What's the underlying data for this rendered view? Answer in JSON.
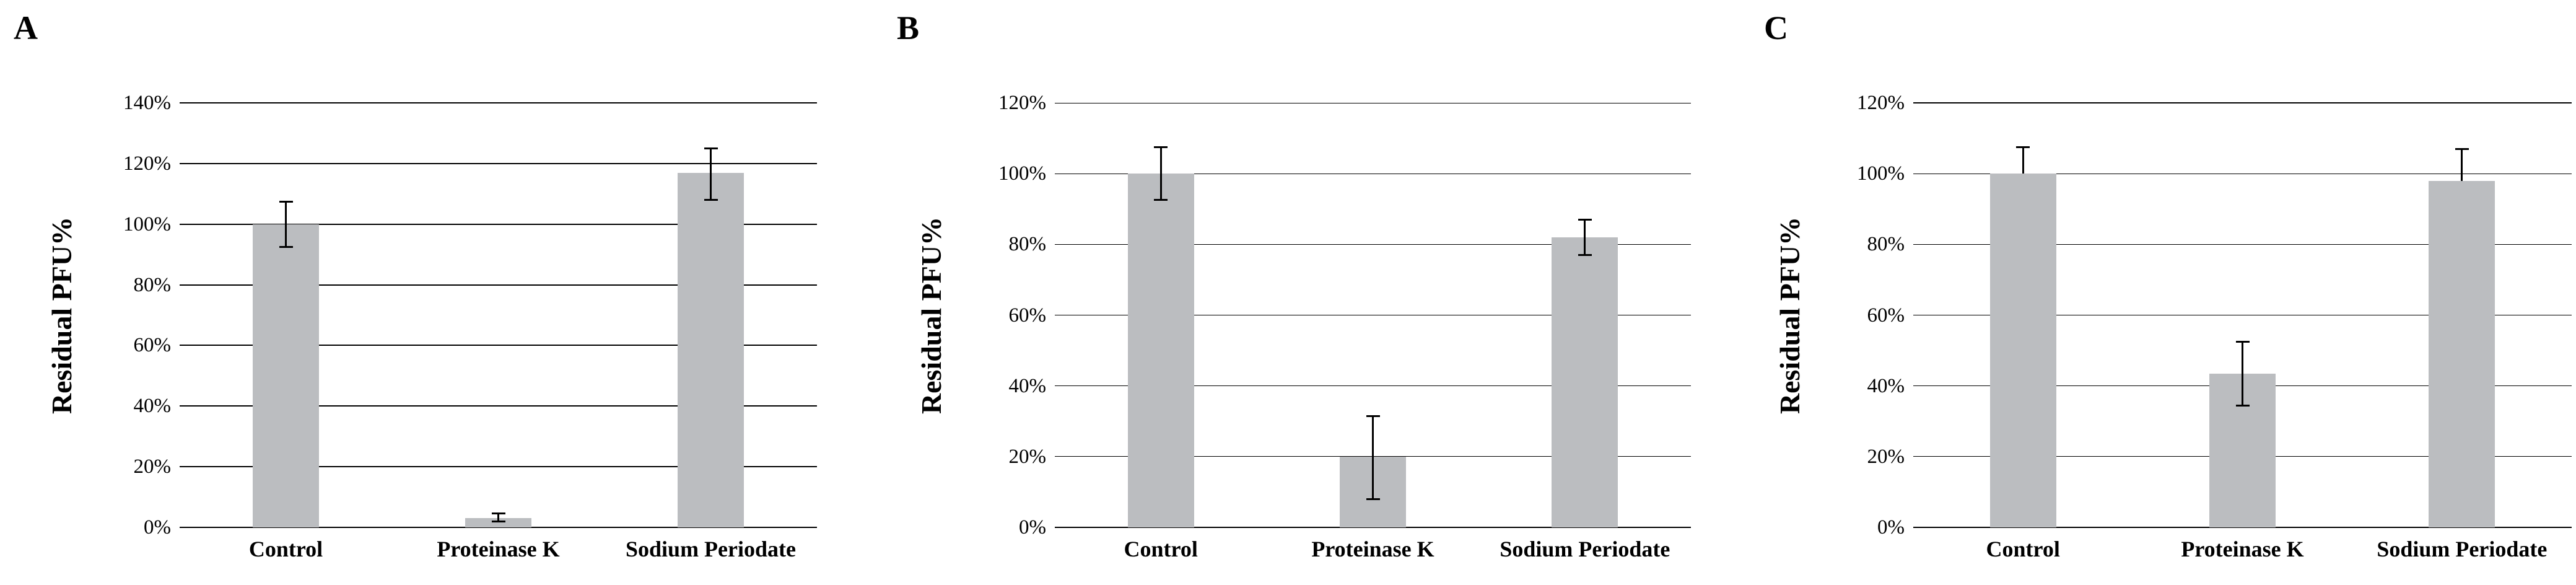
{
  "colors": {
    "bar_fill": "#BBBDC0",
    "axis": "#000000",
    "error_bar": "#000000",
    "background": "#FFFFFF"
  },
  "chart_data": [
    {
      "type": "bar",
      "panel_label": "A",
      "title": "",
      "xlabel": "",
      "ylabel": "Residual PFU%",
      "categories": [
        "Control",
        "Proteinase K",
        "Sodium Periodate"
      ],
      "values": [
        100,
        3,
        117
      ],
      "error_high": [
        107.5,
        4.5,
        125
      ],
      "error_low": [
        92.5,
        2,
        108
      ],
      "ylim": [
        0,
        140
      ],
      "ytick_step": 20,
      "ytick_labels": [
        "0%",
        "20%",
        "40%",
        "60%",
        "80%",
        "100%",
        "120%",
        "140%"
      ],
      "grid": true,
      "legend": null,
      "bar_color": "#BBBDC0"
    },
    {
      "type": "bar",
      "panel_label": "B",
      "title": "",
      "xlabel": "",
      "ylabel": "Residual PFU%",
      "categories": [
        "Control",
        "Proteinase K",
        "Sodium Periodate"
      ],
      "values": [
        100,
        20,
        82
      ],
      "error_high": [
        107.5,
        31.5,
        87
      ],
      "error_low": [
        92.5,
        8,
        77
      ],
      "ylim": [
        0,
        120
      ],
      "ytick_step": 20,
      "ytick_labels": [
        "0%",
        "20%",
        "40%",
        "60%",
        "80%",
        "100%",
        "120%"
      ],
      "grid": true,
      "legend": null,
      "bar_color": "#BBBDC0"
    },
    {
      "type": "bar",
      "panel_label": "C",
      "title": "",
      "xlabel": "",
      "ylabel": "Residual PFU%",
      "categories": [
        "Control",
        "Proteinase K",
        "Sodium Periodate"
      ],
      "values": [
        100,
        43.5,
        98
      ],
      "error_high": [
        107.5,
        52.5,
        107
      ],
      "error_low": [
        null,
        34.5,
        null
      ],
      "ylim": [
        0,
        120
      ],
      "ytick_step": 20,
      "ytick_labels": [
        "0%",
        "20%",
        "40%",
        "60%",
        "80%",
        "100%",
        "120%"
      ],
      "grid": true,
      "legend": null,
      "bar_color": "#BBBDC0"
    }
  ]
}
